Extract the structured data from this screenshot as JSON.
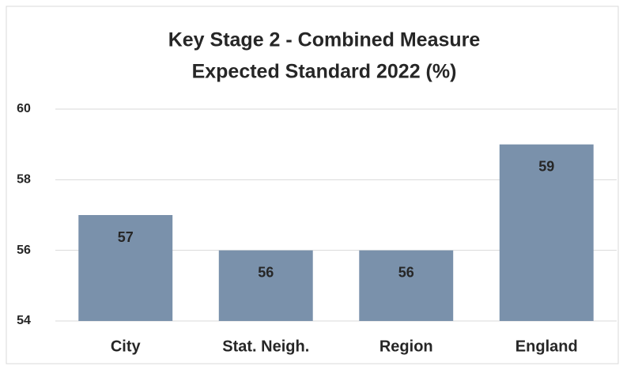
{
  "chart_data": {
    "type": "bar",
    "title": [
      "Key Stage 2 - Combined Measure",
      "Expected Standard 2022 (%)"
    ],
    "categories": [
      "City",
      "Stat. Neigh.",
      "Region",
      "England"
    ],
    "values": [
      57,
      56,
      56,
      59
    ],
    "color": "#7a91ab",
    "ylim": [
      54,
      60
    ],
    "yticks": [
      54,
      56,
      58,
      60
    ],
    "grid": true
  }
}
